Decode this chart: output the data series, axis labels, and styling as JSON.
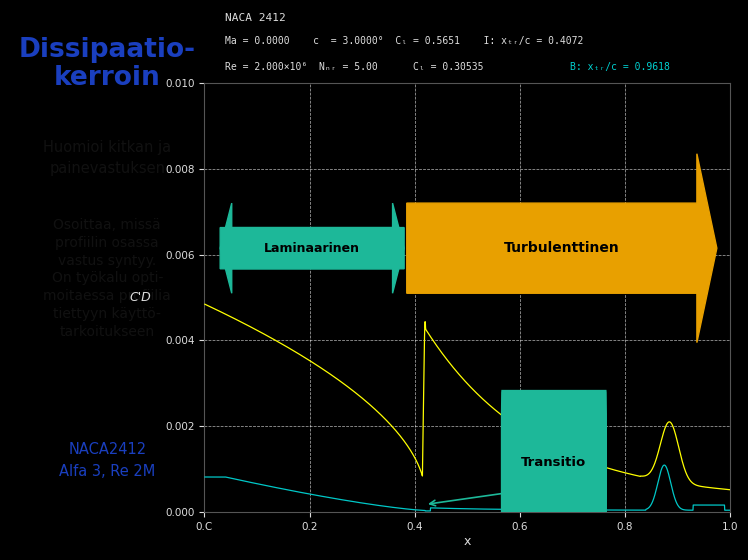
{
  "title": "Dissipaatio-\nkerroin",
  "text1": "Huomioi kitkan ja\npainevastuksen",
  "text2": "Osoittaa, missä\nprofiilin osassa\nvastus syntyy.\nOn työkalu opti-\nmoitaessa profiilia\ntiettyyn käyttö-\ntarkoitukseen",
  "text3": "NACA2412\nAlfa 3, Re 2M",
  "plot_bg": "#000000",
  "left_bg": "#b8c4d0",
  "title_color": "#1a3fbf",
  "text_color": "#111111",
  "naca_text_color": "#1a3fbf",
  "grid_color": "#ffffff",
  "ylabel": "C'D",
  "xlabel": "x",
  "ylim": [
    0.0,
    0.01
  ],
  "xlim": [
    0.0,
    1.0
  ],
  "yticks": [
    0.0,
    0.002,
    0.004,
    0.006,
    0.008,
    0.01
  ],
  "xticks": [
    0.0,
    0.2,
    0.4,
    0.6,
    0.8,
    1.0
  ],
  "lam_arrow_color": "#1db899",
  "turb_arrow_color": "#e8a000",
  "trans_box_color": "#1db899",
  "curve1_color": "#ffff00",
  "curve2_color": "#00c8c8",
  "header_text_color": "#dddddd",
  "header_cyan_color": "#00d0d0"
}
